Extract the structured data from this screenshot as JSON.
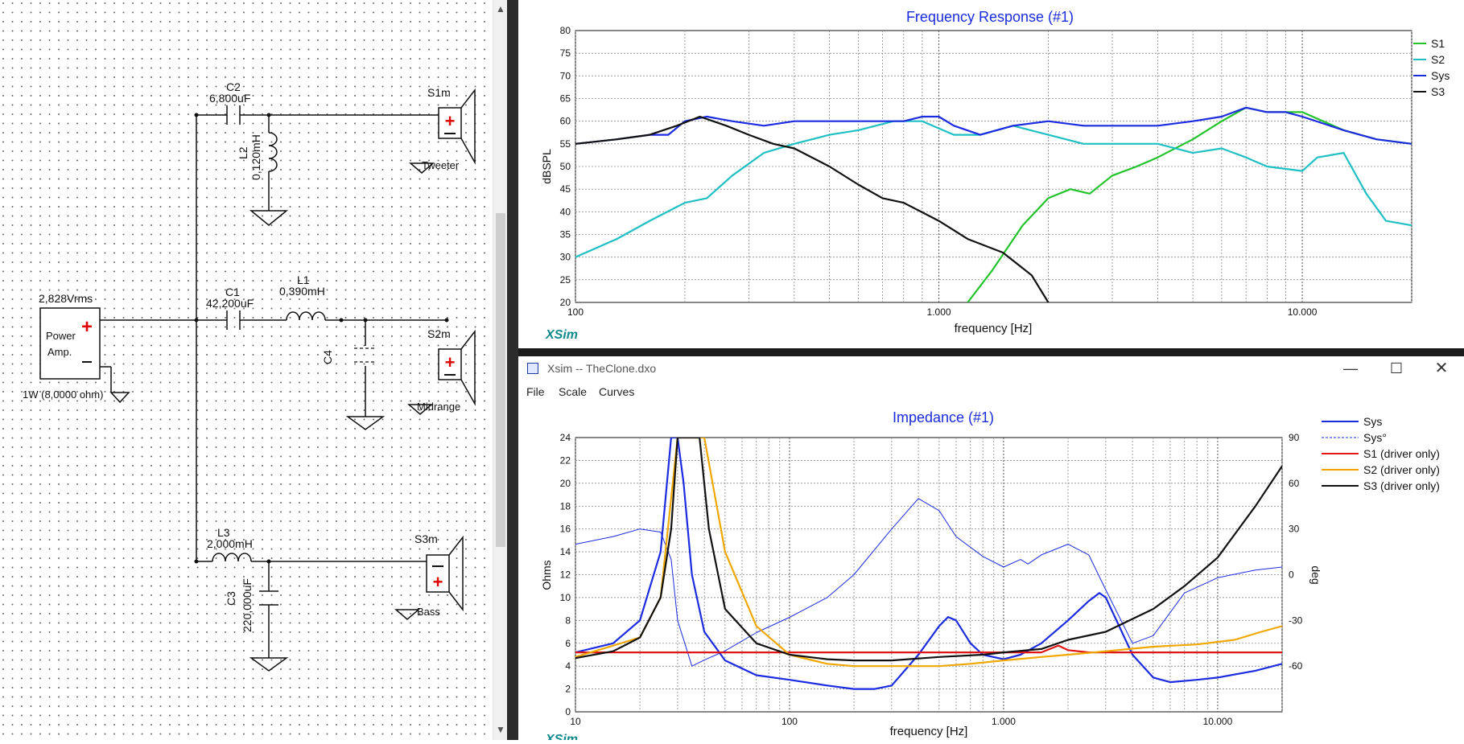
{
  "schematic": {
    "source_voltage": "2,828Vrms",
    "source_label_1": "Power",
    "source_label_2": "Amp.",
    "source_rating": "1W (8,0000 ohm)",
    "c2_name": "C2",
    "c2_value": "6,800uF",
    "l2_name": "L2",
    "l2_value": "0,120mH",
    "c1_name": "C1",
    "c1_value": "42,200uF",
    "l1_name": "L1",
    "l1_value": "0,390mH",
    "c4_name": "C4",
    "l3_name": "L3",
    "l3_value": "2,000mH",
    "c3_name": "C3",
    "c3_value": "220,000uF",
    "s1_name": "S1m",
    "s1_label": "Tweeter",
    "s2_name": "S2m",
    "s2_label": "Midrange",
    "s3_name": "S3m",
    "s3_label": "Bass"
  },
  "frequency_response": {
    "title": "Frequency Response (#1)",
    "xlabel": "frequency [Hz]",
    "ylabel": "dBSPL",
    "brand": "XSim",
    "x_ticks": [
      "100",
      "1.000",
      "10.000"
    ],
    "y_ticks": [
      "20",
      "25",
      "30",
      "35",
      "40",
      "45",
      "50",
      "55",
      "60",
      "65",
      "70",
      "75",
      "80"
    ],
    "legend": [
      {
        "name": "S1",
        "color": "#22c42b"
      },
      {
        "name": "S2",
        "color": "#1ec0c4"
      },
      {
        "name": "Sys",
        "color": "#1a2be0"
      },
      {
        "name": "S3",
        "color": "#111111"
      }
    ]
  },
  "impedance_window": {
    "window_title": "Xsim -- TheClone.dxo",
    "menu": [
      "File",
      "Scale",
      "Curves"
    ],
    "title": "Impedance (#1)",
    "xlabel": "frequency [Hz]",
    "ylabel_left": "Ohms",
    "ylabel_right": "deg",
    "brand": "XSim",
    "x_ticks": [
      "10",
      "100",
      "1.000",
      "10.000"
    ],
    "y_ticks_left": [
      "0",
      "2",
      "4",
      "6",
      "8",
      "10",
      "12",
      "14",
      "16",
      "18",
      "20",
      "22",
      "24"
    ],
    "y_ticks_right": [
      "-60",
      "-30",
      "0",
      "30",
      "60",
      "90"
    ],
    "legend": [
      {
        "name": "Sys",
        "color": "#1a2be0",
        "style": "solid"
      },
      {
        "name": "Sys°",
        "color": "#1a2be0",
        "style": "dashed"
      },
      {
        "name": "S1 (driver only)",
        "color": "#e01515",
        "style": "solid"
      },
      {
        "name": "S2 (driver only)",
        "color": "#f0a800",
        "style": "solid"
      },
      {
        "name": "S3 (driver only)",
        "color": "#111111",
        "style": "solid"
      }
    ]
  },
  "chart_data": [
    {
      "type": "line",
      "title": "Frequency Response (#1)",
      "xlabel": "frequency [Hz]",
      "ylabel": "dBSPL",
      "xscale": "log",
      "xlim": [
        100,
        20000
      ],
      "ylim": [
        20,
        80
      ],
      "grid": true,
      "legend_position": "right",
      "series": [
        {
          "name": "S1",
          "color": "#22c42b",
          "x": [
            1200,
            1400,
            1700,
            2000,
            2300,
            2600,
            3000,
            3500,
            4000,
            5000,
            6000,
            7000,
            8000,
            10000,
            13000,
            16000,
            20000
          ],
          "y": [
            20,
            27,
            37,
            43,
            45,
            44,
            48,
            50,
            52,
            56,
            60,
            63,
            62,
            62,
            58,
            56,
            55
          ]
        },
        {
          "name": "S2",
          "color": "#1ec0c4",
          "x": [
            100,
            130,
            160,
            200,
            230,
            270,
            330,
            400,
            500,
            600,
            750,
            900,
            1100,
            1300,
            1600,
            2000,
            2500,
            3000,
            4000,
            5000,
            6000,
            7000,
            8000,
            10000,
            11000,
            13000,
            15000,
            17000,
            20000
          ],
          "y": [
            30,
            34,
            38,
            42,
            43,
            48,
            53,
            55,
            57,
            58,
            60,
            60,
            57,
            57,
            59,
            57,
            55,
            55,
            55,
            53,
            54,
            52,
            50,
            49,
            52,
            53,
            44,
            38,
            37
          ]
        },
        {
          "name": "Sys",
          "color": "#1a2be0",
          "x": [
            100,
            130,
            160,
            180,
            200,
            230,
            270,
            330,
            400,
            500,
            600,
            700,
            800,
            900,
            1000,
            1100,
            1300,
            1600,
            2000,
            2500,
            3000,
            4000,
            5000,
            6000,
            7000,
            8000,
            9000,
            10000,
            13000,
            16000,
            20000
          ],
          "y": [
            55,
            56,
            57,
            57,
            60,
            61,
            60,
            59,
            60,
            60,
            60,
            60,
            60,
            61,
            61,
            59,
            57,
            59,
            60,
            59,
            59,
            59,
            60,
            61,
            63,
            62,
            62,
            61,
            58,
            56,
            55
          ]
        },
        {
          "name": "S3",
          "color": "#111111",
          "x": [
            100,
            130,
            160,
            190,
            220,
            260,
            300,
            350,
            400,
            500,
            600,
            700,
            800,
            1000,
            1200,
            1500,
            1800,
            2000
          ],
          "y": [
            55,
            56,
            57,
            59,
            61,
            59,
            57,
            55,
            54,
            50,
            46,
            43,
            42,
            38,
            34,
            31,
            26,
            20
          ]
        }
      ]
    },
    {
      "type": "line",
      "title": "Impedance (#1)",
      "xlabel": "frequency [Hz]",
      "ylabel": "Ohms",
      "ylabel_right": "deg",
      "xscale": "log",
      "xlim": [
        10,
        20000
      ],
      "ylim": [
        0,
        24
      ],
      "ylim_right": [
        -90,
        90
      ],
      "grid": true,
      "legend_position": "right",
      "series": [
        {
          "name": "Sys",
          "color": "#1a2be0",
          "axis": "left",
          "x": [
            10,
            15,
            20,
            25,
            28,
            30,
            32,
            35,
            40,
            50,
            70,
            100,
            150,
            200,
            250,
            300,
            400,
            500,
            550,
            600,
            700,
            800,
            1000,
            1200,
            1500,
            2000,
            2500,
            2800,
            3000,
            4000,
            5000,
            6000,
            8000,
            10000,
            15000,
            20000
          ],
          "y": [
            5.2,
            6,
            8,
            14,
            24,
            24,
            20,
            12,
            7,
            4.5,
            3.2,
            2.8,
            2.3,
            2.0,
            2.0,
            2.3,
            5,
            7.5,
            8.3,
            8,
            6,
            5,
            4.6,
            5,
            6,
            8,
            9.7,
            10.4,
            10,
            5,
            3,
            2.6,
            2.8,
            3,
            3.6,
            4.2
          ]
        },
        {
          "name": "Sys°",
          "color": "#1a2be0",
          "axis": "right",
          "x": [
            10,
            15,
            20,
            25,
            28,
            30,
            35,
            40,
            50,
            70,
            100,
            150,
            200,
            300,
            400,
            500,
            600,
            800,
            1000,
            1200,
            1300,
            1500,
            2000,
            2500,
            3000,
            4000,
            5000,
            7000,
            10000,
            15000,
            20000
          ],
          "y": [
            20,
            25,
            30,
            28,
            10,
            -30,
            -60,
            -56,
            -50,
            -38,
            -28,
            -15,
            0,
            30,
            50,
            42,
            25,
            12,
            5,
            10,
            7,
            13,
            20,
            13,
            -10,
            -45,
            -40,
            -12,
            -2,
            3,
            5
          ]
        },
        {
          "name": "S1 (driver only)",
          "color": "#e01515",
          "axis": "left",
          "x": [
            10,
            1500,
            1800,
            2000,
            2500,
            20000
          ],
          "y": [
            5.2,
            5.2,
            5.8,
            5.4,
            5.2,
            5.2
          ]
        },
        {
          "name": "S2 (driver only)",
          "color": "#f0a800",
          "axis": "left",
          "x": [
            10,
            20,
            25,
            30,
            35,
            40,
            50,
            70,
            100,
            150,
            200,
            300,
            500,
            700,
            1000,
            1500,
            2000,
            3000,
            5000,
            8000,
            12000,
            16000,
            20000
          ],
          "y": [
            4.8,
            6.5,
            10,
            24,
            24,
            24,
            14,
            7.5,
            5,
            4.2,
            4.0,
            4.0,
            4.0,
            4.2,
            4.5,
            4.8,
            5.0,
            5.3,
            5.7,
            5.9,
            6.3,
            7,
            7.5
          ]
        },
        {
          "name": "S3 (driver only)",
          "color": "#111111",
          "axis": "left",
          "x": [
            10,
            15,
            20,
            25,
            28,
            30,
            35,
            38,
            42,
            50,
            70,
            100,
            150,
            200,
            300,
            500,
            800,
            1000,
            1500,
            2000,
            3000,
            5000,
            7000,
            10000,
            15000,
            20000
          ],
          "y": [
            4.7,
            5.3,
            6.5,
            10,
            16,
            24,
            24,
            24,
            16,
            9,
            6,
            5,
            4.6,
            4.5,
            4.5,
            4.8,
            5,
            5.2,
            5.5,
            6.3,
            7,
            9,
            11,
            13.5,
            18,
            21.5
          ]
        }
      ]
    }
  ]
}
